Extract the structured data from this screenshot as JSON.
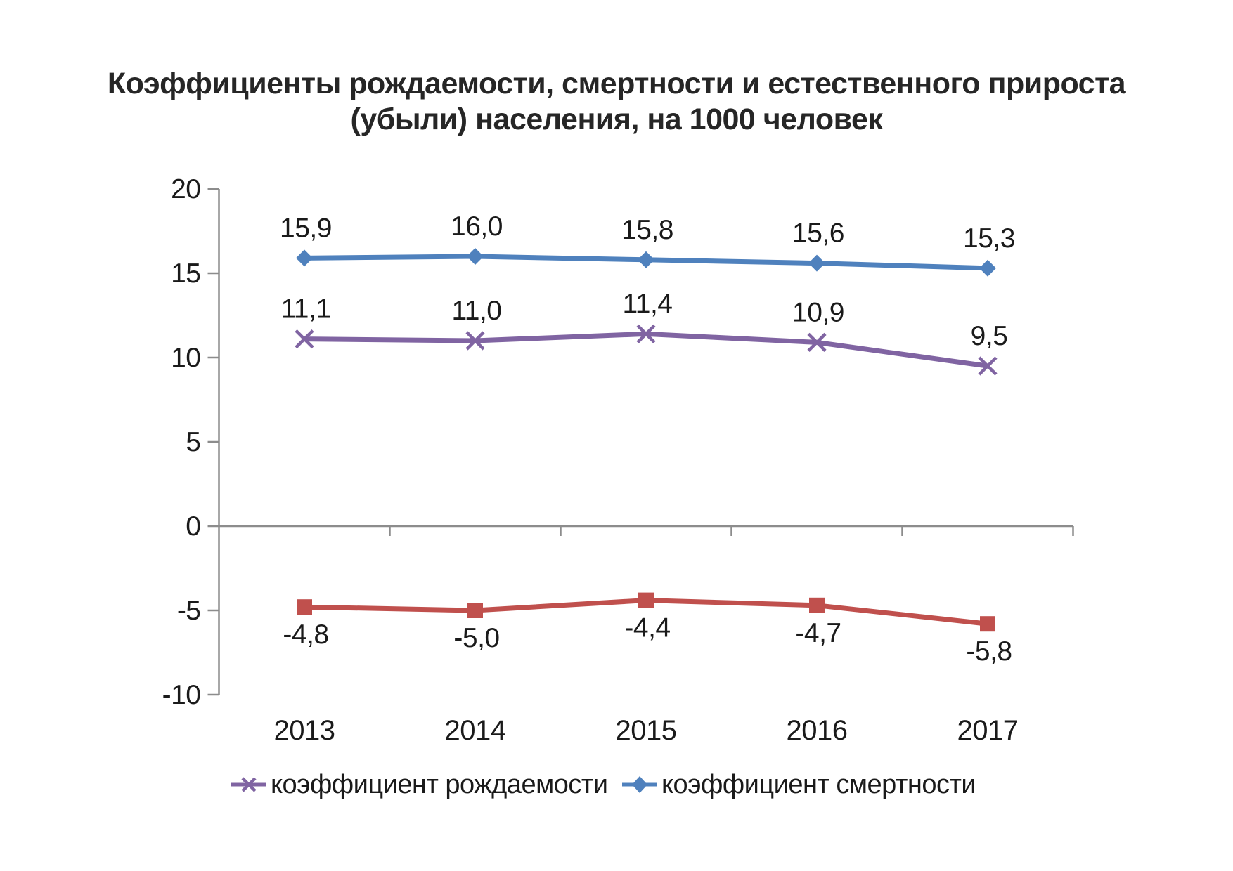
{
  "title": {
    "line1": "Коэффициенты рождаемости, смертности и естественного прироста",
    "line2": "(убыли) населения, на 1000 человек"
  },
  "chart_data": {
    "type": "line",
    "categories": [
      "2013",
      "2014",
      "2015",
      "2016",
      "2017"
    ],
    "series": [
      {
        "name": "коэффициент рождаемости",
        "marker": "x",
        "color": "#8064A2",
        "values": [
          11.1,
          11.0,
          11.4,
          10.9,
          9.5
        ],
        "labels": [
          "11,1",
          "11,0",
          "11,4",
          "10,9",
          "9,5"
        ],
        "label_position": "above",
        "in_legend": true
      },
      {
        "name": "коэффициент смертности",
        "marker": "diamond",
        "color": "#4F81BD",
        "values": [
          15.9,
          16.0,
          15.8,
          15.6,
          15.3
        ],
        "labels": [
          "15,9",
          "16,0",
          "15,8",
          "15,6",
          "15,3"
        ],
        "label_position": "above",
        "in_legend": true
      },
      {
        "name": "",
        "marker": "square",
        "color": "#C0504D",
        "values": [
          -4.8,
          -5.0,
          -4.4,
          -4.7,
          -5.8
        ],
        "labels": [
          "-4,8",
          "-5,0",
          "-4,4",
          "-4,7",
          "-5,8"
        ],
        "label_position": "below",
        "in_legend": false
      }
    ],
    "ylim": [
      -10,
      20
    ],
    "yticks": [
      -10,
      -5,
      0,
      5,
      10,
      15,
      20
    ],
    "ytick_labels": [
      "-10",
      "-5",
      "0",
      "5",
      "10",
      "15",
      "20"
    ],
    "grid": false,
    "legend_position": "bottom",
    "axis_color": "#8C8C8C",
    "text_color": "#1A1A1A"
  }
}
